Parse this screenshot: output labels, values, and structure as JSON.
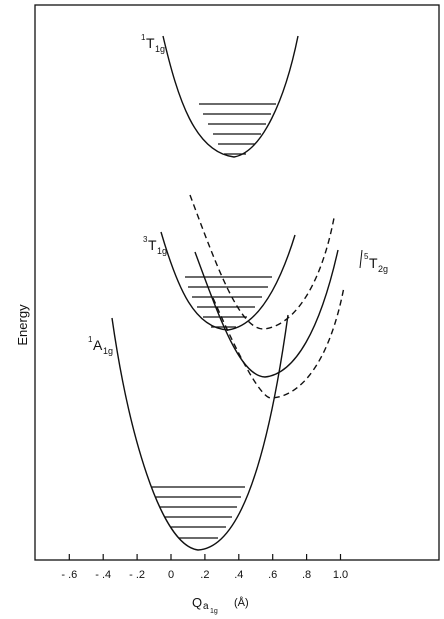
{
  "axes": {
    "ylabel": "Energy",
    "xlabel_main": "Q",
    "xlabel_sub1": "a",
    "xlabel_sub2": "1g",
    "xlabel_unit": "(Å)",
    "xticks": [
      -0.6,
      -0.4,
      -0.2,
      0,
      0.2,
      0.4,
      0.6,
      0.8,
      1.0
    ],
    "xtick_labels": [
      "- .6",
      "- .4",
      "- .2",
      "0",
      ".2",
      ".4",
      ".6",
      ".8",
      "1.0"
    ]
  },
  "states": [
    {
      "id": "1T1g",
      "sup": "1",
      "base": "T",
      "sub": "1g",
      "line": "solid",
      "min_q": 0.19,
      "vibrational_levels": 6
    },
    {
      "id": "3T1g",
      "sup": "3",
      "base": "T",
      "sub": "1g",
      "line": "solid",
      "min_q": 0.12,
      "vibrational_levels": 6
    },
    {
      "id": "1A1g",
      "sup": "1",
      "base": "A",
      "sub": "1g",
      "line": "solid",
      "min_q": 0.0,
      "vibrational_levels": 6
    },
    {
      "id": "5T2g",
      "sup": "5",
      "base": "T",
      "sub": "2g",
      "line": "dashed",
      "min_q": 0.32,
      "vibrational_levels": 0
    }
  ],
  "colors": {
    "ink": "#111111",
    "background": "#ffffff"
  }
}
